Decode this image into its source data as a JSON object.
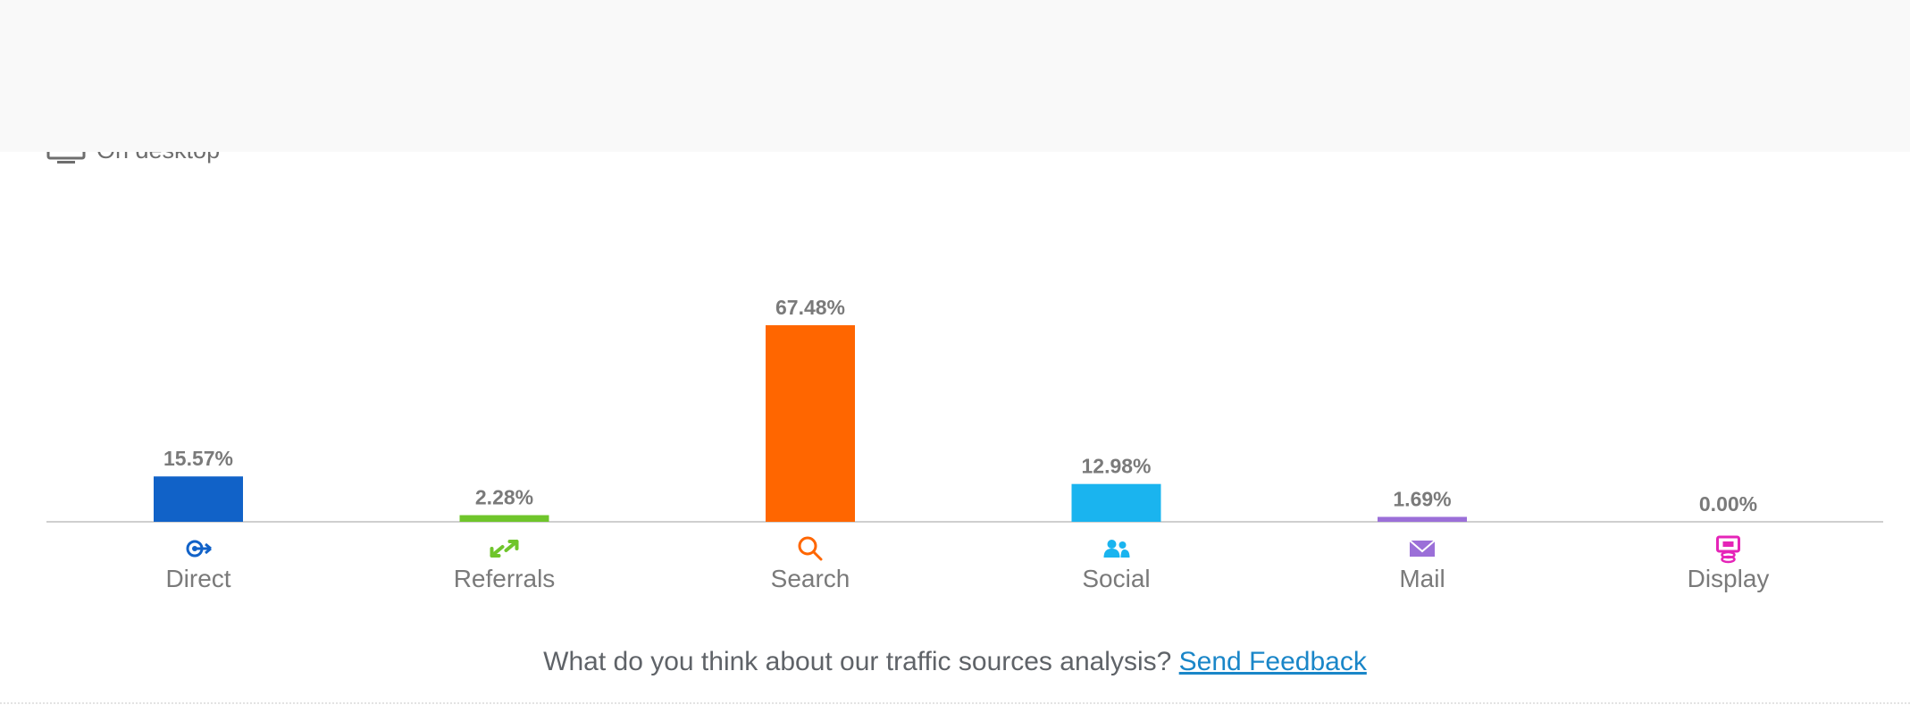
{
  "device": {
    "label": "On desktop",
    "icon": "monitor-icon"
  },
  "chart_data": {
    "type": "bar",
    "categories": [
      "Direct",
      "Referrals",
      "Search",
      "Social",
      "Mail",
      "Display"
    ],
    "values": [
      15.57,
      2.28,
      67.48,
      12.98,
      1.69,
      0.0
    ],
    "value_labels": [
      "15.57%",
      "2.28%",
      "67.48%",
      "12.98%",
      "1.69%",
      "0.00%"
    ],
    "colors": [
      "#1162c8",
      "#6fc52b",
      "#ff6600",
      "#1ab4ef",
      "#9b6fd8",
      "#e524b8"
    ],
    "icons": [
      "direct-icon",
      "referrals-icon",
      "search-icon",
      "social-icon",
      "mail-icon",
      "display-icon"
    ],
    "title": "",
    "xlabel": "",
    "ylabel": "",
    "ylim": [
      0,
      67.48
    ],
    "grid": false,
    "legend": "none"
  },
  "footer": {
    "question": "What do you think about our traffic sources analysis?",
    "link": "Send Feedback"
  }
}
